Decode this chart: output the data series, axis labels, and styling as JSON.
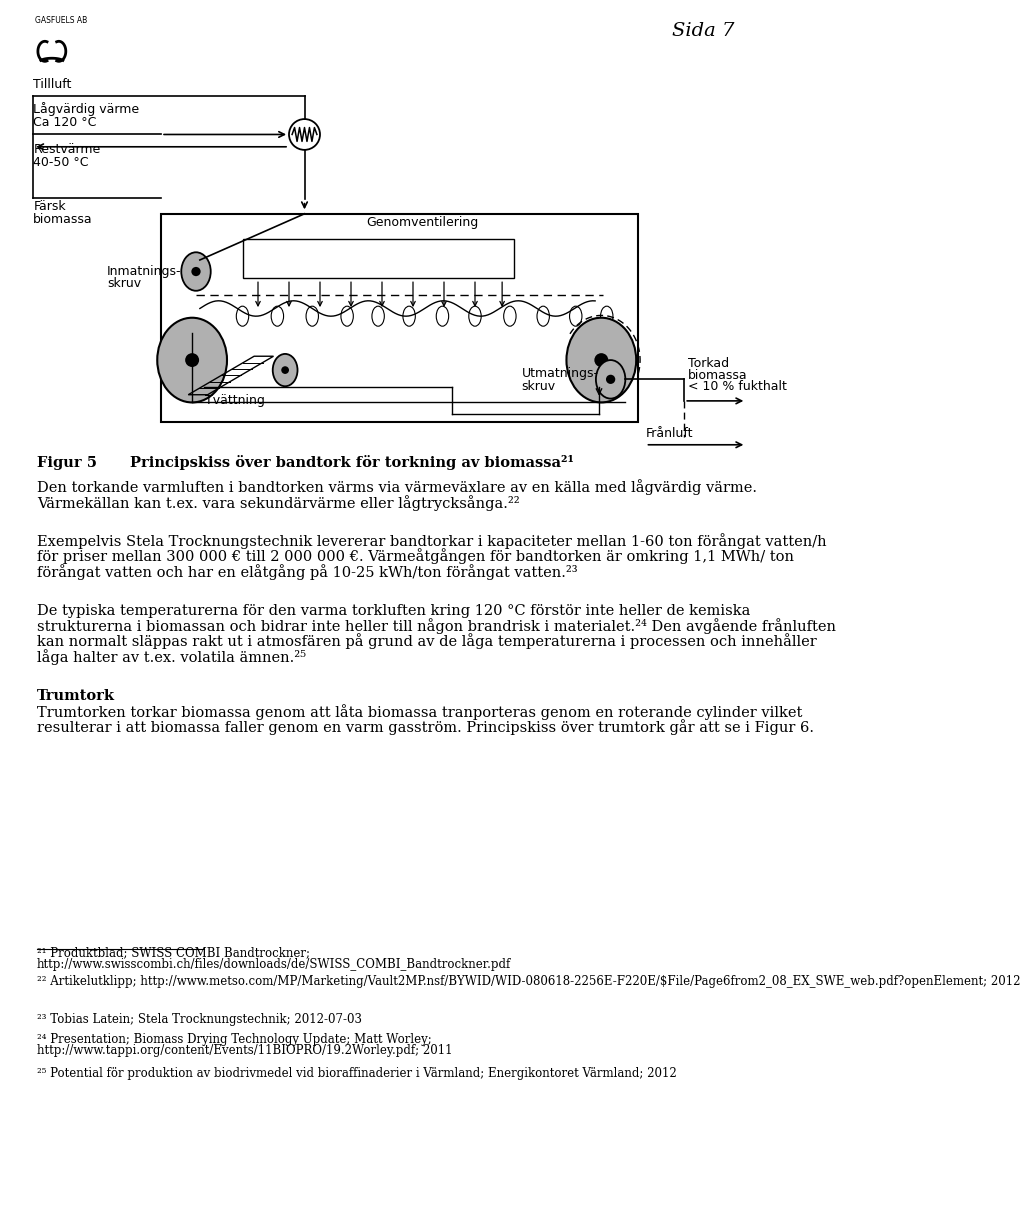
{
  "bg_color": "#ffffff",
  "page_width": 9.6,
  "page_height": 15.51,
  "header_logo_text": "GASFUELS AB",
  "header_page": "Sida 7",
  "diagram_caption": "Principskiss över bandtork för torkning av biomassa²¹",
  "para1_line1": "Den torkande varmluften i bandtorken värms via värmeväxlare av en källa med lågvärdig värme.",
  "para1_line2": "Värmekällan kan t.ex. vara sekundärvärme eller lågtrycksånga.²²",
  "para2_line1": "Exempelvis Stela Trocknungstechnik levererar bandtorkar i kapaciteter mellan 1-60 ton förångat vatten/h",
  "para2_line2": "för priser mellan 300 000 € till 2 000 000 €. Värmeåtgången för bandtorken är omkring 1,1 MWh/ ton",
  "para2_line3": "förångat vatten och har en elåtgång på 10-25 kWh/ton förångat vatten.²³",
  "para3_line1": "De typiska temperaturerna för den varma torkluften kring 120 °C förstör inte heller de kemiska",
  "para3_line2": "strukturerna i biomassan och bidrar inte heller till någon brandrisk i materialet.²⁴ Den avgående frånluften",
  "para3_line3": "kan normalt släppas rakt ut i atmosfären på grund av de låga temperaturerna i processen och innehåller",
  "para3_line4": "låga halter av t.ex. volatila ämnen.²⁵",
  "heading_trumtork": "Trumtork",
  "trumtork_line1": "Trumtorken torkar biomassa genom att låta biomassa tranporteras genom en roterande cylinder vilket",
  "trumtork_line2": "resulterar i att biomassa faller genom en varm gasström. Principskiss över trumtork går att se i Figur 6.",
  "fn1_line1": "²¹ Produktblad; SWISS COMBI Bandtrockner;",
  "fn1_line2": "http://www.swisscombi.ch/files/downloads/de/SWISS_COMBI_Bandtrockner.pdf",
  "fn2": "²² Artikelutklipp; http://www.metso.com/MP/Marketing/Vault2MP.nsf/BYWID/WID-080618-2256E-F220E/$File/Page6from2_08_EX_SWE_web.pdf?openElement; 2012",
  "fn3": "²³ Tobias Latein; Stela Trocknungstechnik; 2012-07-03",
  "fn4_line1": "²⁴ Presentation; Biomass Drying Technology Update; Matt Worley;",
  "fn4_line2": "http://www.tappi.org/content/Events/11BIOPRO/19.2Worley.pdf; 2011",
  "fn5": "²⁵ Potential för produktion av biodrivmedel vid bioraffinaderier i Värmland; Energikontoret Värmland; 2012"
}
